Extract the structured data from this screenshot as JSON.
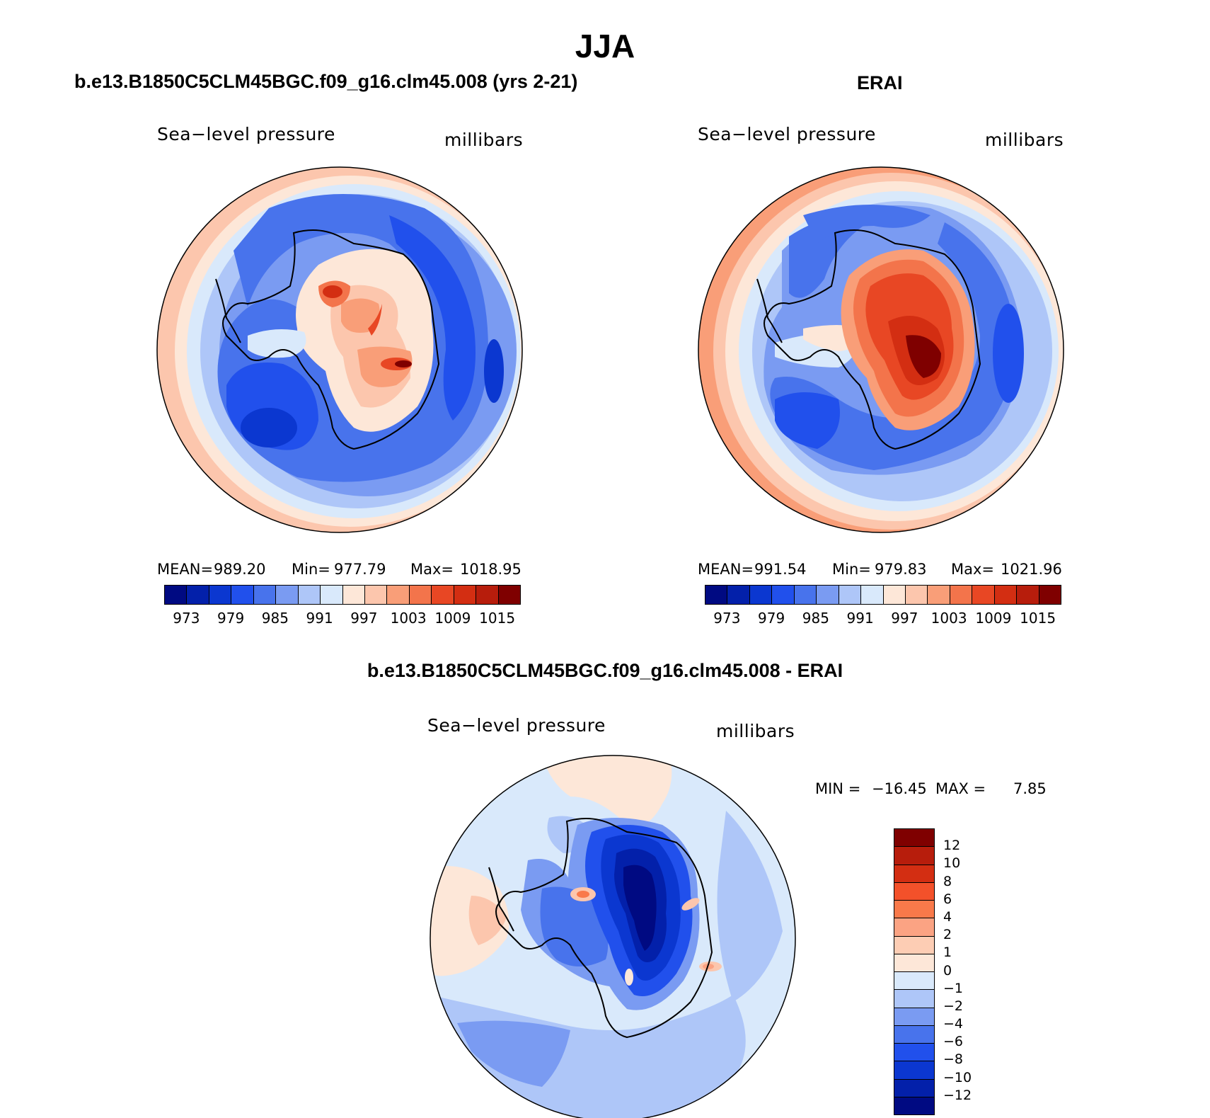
{
  "chart_data": [
    {
      "type": "contour-map",
      "projection": "south-polar-stereographic",
      "panel": "model",
      "title": "b.e13.B1850C5CLM45BGC.f09_g16.clm45.008 (yrs 2-21)",
      "variable": "Sea−level pressure",
      "units": "millibars",
      "stats": {
        "mean": "989.20",
        "min": "977.79",
        "max": "1018.95"
      },
      "colorbar": {
        "levels": [
          973,
          976,
          979,
          982,
          985,
          988,
          991,
          994,
          997,
          1000,
          1003,
          1006,
          1009,
          1012,
          1015
        ],
        "tick_labels": [
          "973",
          "979",
          "985",
          "991",
          "997",
          "1003",
          "1009",
          "1015"
        ],
        "colors": [
          "#000a82",
          "#0320aa",
          "#0b37d0",
          "#2150ec",
          "#4873ec",
          "#7a9bf2",
          "#aec6f8",
          "#d9e9fb",
          "#fde7d8",
          "#fcc6ad",
          "#f99e78",
          "#f3744b",
          "#e84724",
          "#d32e12",
          "#b71d0c",
          "#7f0000"
        ]
      }
    },
    {
      "type": "contour-map",
      "projection": "south-polar-stereographic",
      "panel": "observations",
      "title": "ERAI",
      "variable": "Sea−level pressure",
      "units": "millibars",
      "stats": {
        "mean": "991.54",
        "min": "979.83",
        "max": "1021.96"
      },
      "colorbar": {
        "levels": [
          973,
          976,
          979,
          982,
          985,
          988,
          991,
          994,
          997,
          1000,
          1003,
          1006,
          1009,
          1012,
          1015
        ],
        "tick_labels": [
          "973",
          "979",
          "985",
          "991",
          "997",
          "1003",
          "1009",
          "1015"
        ],
        "colors": [
          "#000a82",
          "#0320aa",
          "#0b37d0",
          "#2150ec",
          "#4873ec",
          "#7a9bf2",
          "#aec6f8",
          "#d9e9fb",
          "#fde7d8",
          "#fcc6ad",
          "#f99e78",
          "#f3744b",
          "#e84724",
          "#d32e12",
          "#b71d0c",
          "#7f0000"
        ]
      }
    },
    {
      "type": "contour-map",
      "projection": "south-polar-stereographic",
      "panel": "difference",
      "title": "b.e13.B1850C5CLM45BGC.f09_g16.clm45.008 - ERAI",
      "variable": "Sea−level pressure",
      "units": "millibars",
      "stats": {
        "min": "−16.45",
        "max": "7.85"
      },
      "colorbar": {
        "levels": [
          -12,
          -10,
          -8,
          -6,
          -4,
          -2,
          -1,
          0,
          1,
          2,
          4,
          6,
          8,
          10,
          12
        ],
        "tick_labels": [
          "12",
          "10",
          "8",
          "6",
          "4",
          "2",
          "1",
          "0",
          "−1",
          "−2",
          "−4",
          "−6",
          "−8",
          "−10",
          "−12"
        ],
        "colors_top_to_bottom": [
          "#7f0000",
          "#b71d0c",
          "#d32e12",
          "#f3512a",
          "#f9794a",
          "#fba383",
          "#fdcdb4",
          "#fde7d8",
          "#d9e9fb",
          "#aec6f8",
          "#7a9bf2",
          "#4873ec",
          "#2150ec",
          "#0b37d0",
          "#0320aa",
          "#000a82"
        ]
      }
    }
  ],
  "figure": {
    "season": "JJA",
    "left_panel": {
      "title": "b.e13.B1850C5CLM45BGC.f09_g16.clm45.008 (yrs 2-21)",
      "variable": "Sea−level pressure",
      "units": "millibars",
      "mean_label": "MEAN=",
      "mean": "989.20",
      "min_label": "Min=",
      "min": "977.79",
      "max_label": "Max=",
      "max": "1018.95"
    },
    "right_panel": {
      "title": "ERAI",
      "variable": "Sea−level pressure",
      "units": "millibars",
      "mean_label": "MEAN=",
      "mean": "991.54",
      "min_label": "Min=",
      "min": "979.83",
      "max_label": "Max=",
      "max": "1021.96"
    },
    "bottom_panel": {
      "title": "b.e13.B1850C5CLM45BGC.f09_g16.clm45.008 - ERAI",
      "variable": "Sea−level pressure",
      "units": "millibars",
      "min_label": "MIN =",
      "min": "−16.45",
      "max_label": "MAX =",
      "max": "7.85"
    }
  }
}
